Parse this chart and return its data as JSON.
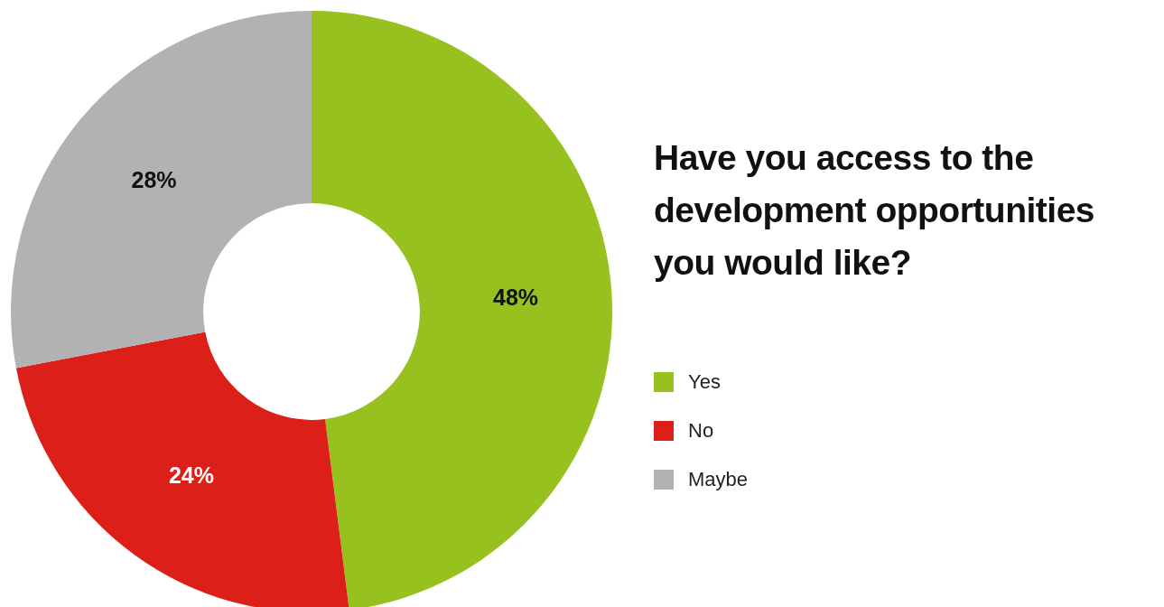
{
  "chart_data": {
    "type": "donut",
    "title": "Have you access to the development opportunities you would like?",
    "categories": [
      "Yes",
      "No",
      "Maybe"
    ],
    "values": [
      48,
      24,
      28
    ],
    "value_labels": [
      "48%",
      "24%",
      "28%"
    ],
    "colors": [
      "#97c11f",
      "#dc1f18",
      "#b2b2b2"
    ],
    "legend": "right"
  }
}
